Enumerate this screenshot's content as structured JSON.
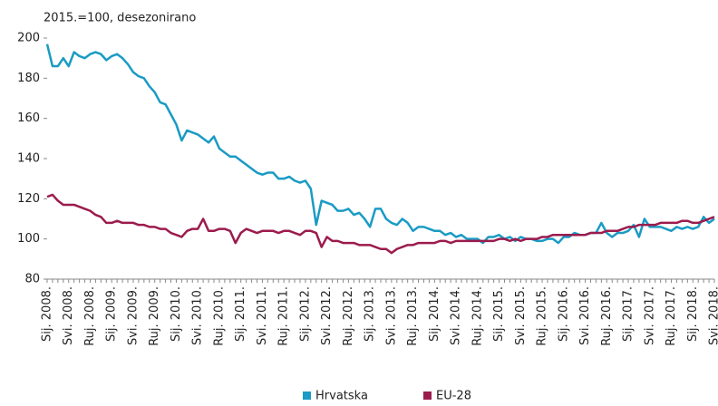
{
  "chart_data": {
    "type": "line",
    "subtitle": "2015.=100, desezonirano",
    "categories": [
      "Sij. 2008.",
      null,
      null,
      null,
      "Svi. 2008.",
      null,
      null,
      null,
      "Ruj. 2008.",
      null,
      null,
      null,
      "Sij. 2009.",
      null,
      null,
      null,
      "Svi. 2009.",
      null,
      null,
      null,
      "Ruj. 2009.",
      null,
      null,
      null,
      "Sij. 2010.",
      null,
      null,
      null,
      "Svi. 2010.",
      null,
      null,
      null,
      "Ruj. 2010.",
      null,
      null,
      null,
      "Sij. 2011.",
      null,
      null,
      null,
      "Svi. 2011.",
      null,
      null,
      null,
      "Ruj. 2011.",
      null,
      null,
      null,
      "Sij. 2012.",
      null,
      null,
      null,
      "Svi. 2012.",
      null,
      null,
      null,
      "Ruj. 2012.",
      null,
      null,
      null,
      "Sij. 2013.",
      null,
      null,
      null,
      "Svi. 2013.",
      null,
      null,
      null,
      "Ruj. 2013.",
      null,
      null,
      null,
      "Sij. 2014.",
      null,
      null,
      null,
      "Svi. 2014.",
      null,
      null,
      null,
      "Ruj. 2014.",
      null,
      null,
      null,
      "Sij. 2015.",
      null,
      null,
      null,
      "Svi. 2015.",
      null,
      null,
      null,
      "Ruj. 2015.",
      null,
      null,
      null,
      "Sij. 2016.",
      null,
      null,
      null,
      "Svi. 2016.",
      null,
      null,
      null,
      "Ruj. 2016.",
      null,
      null,
      null,
      "Sij. 2017.",
      null,
      null,
      null,
      "Svi. 2017.",
      null,
      null,
      null,
      "Ruj. 2017.",
      null,
      null,
      null,
      "Sij. 2018.",
      null,
      null,
      null,
      "Svi. 2018."
    ],
    "series": [
      {
        "name": "Hrvatska",
        "color": "#1a9bc4",
        "values": [
          197,
          186,
          186,
          190,
          186,
          193,
          191,
          190,
          192,
          193,
          192,
          189,
          191,
          192,
          190,
          187,
          183,
          181,
          180,
          176,
          173,
          168,
          167,
          162,
          157,
          149,
          154,
          153,
          152,
          150,
          148,
          151,
          145,
          143,
          141,
          141,
          139,
          137,
          135,
          133,
          132,
          133,
          133,
          130,
          130,
          131,
          129,
          128,
          129,
          125,
          107,
          119,
          118,
          117,
          114,
          114,
          115,
          112,
          113,
          110,
          106,
          115,
          115,
          110,
          108,
          107,
          110,
          108,
          104,
          106,
          106,
          105,
          104,
          104,
          102,
          103,
          101,
          102,
          100,
          100,
          100,
          98,
          101,
          101,
          102,
          100,
          101,
          99,
          101,
          100,
          100,
          99,
          99,
          100,
          100,
          98,
          101,
          101,
          103,
          102,
          102,
          103,
          103,
          108,
          103,
          101,
          103,
          103,
          104,
          107,
          101,
          110,
          106,
          106,
          106,
          105,
          104,
          106,
          105,
          106,
          105,
          106,
          111,
          108,
          110
        ]
      },
      {
        "name": "EU-28",
        "color": "#9b1b4d",
        "values": [
          121,
          122,
          119,
          117,
          117,
          117,
          116,
          115,
          114,
          112,
          111,
          108,
          108,
          109,
          108,
          108,
          108,
          107,
          107,
          106,
          106,
          105,
          105,
          103,
          102,
          101,
          104,
          105,
          105,
          110,
          104,
          104,
          105,
          105,
          104,
          98,
          103,
          105,
          104,
          103,
          104,
          104,
          104,
          103,
          104,
          104,
          103,
          102,
          104,
          104,
          103,
          96,
          101,
          99,
          99,
          98,
          98,
          98,
          97,
          97,
          97,
          96,
          95,
          95,
          93,
          95,
          96,
          97,
          97,
          98,
          98,
          98,
          98,
          99,
          99,
          98,
          99,
          99,
          99,
          99,
          99,
          99,
          99,
          99,
          100,
          100,
          99,
          100,
          99,
          100,
          100,
          100,
          101,
          101,
          102,
          102,
          102,
          102,
          102,
          102,
          102,
          103,
          103,
          103,
          104,
          104,
          104,
          105,
          106,
          106,
          107,
          107,
          107,
          107,
          108,
          108,
          108,
          108,
          109,
          109,
          108,
          108,
          109,
          110,
          111
        ]
      }
    ],
    "ylim": [
      80,
      200
    ],
    "yticks": [
      80,
      100,
      120,
      140,
      160,
      180,
      200
    ],
    "grid": false
  }
}
